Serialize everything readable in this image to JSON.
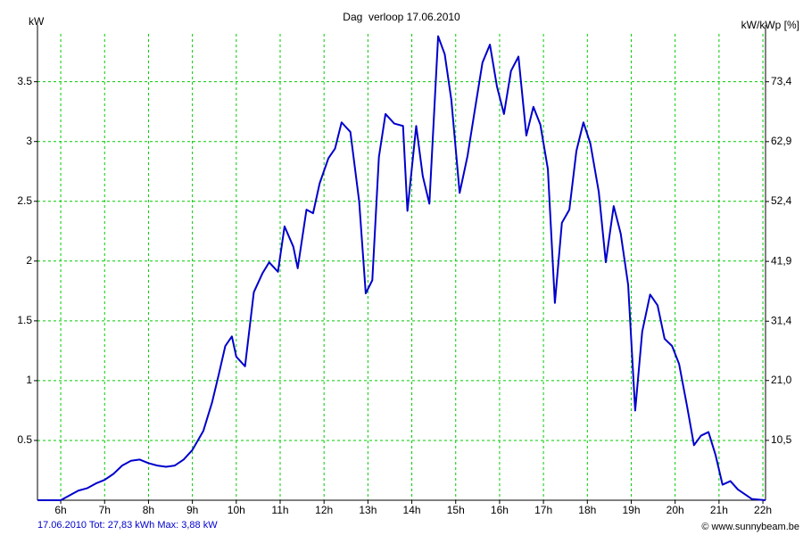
{
  "chart_data": {
    "type": "line",
    "title": "Dag  verloop 17.06.2010",
    "ylabel": "kW",
    "y2label": "kW/kWp [%]",
    "footer": [
      "17.06.2010 Tot: 27,83 kWh Max: 3,88 kW",
      "© www.sunnybeam.be"
    ],
    "footer_color": "#0000cc",
    "grid": true,
    "grid_color": "#00cc00",
    "xlim": [
      5.47,
      22.06
    ],
    "xticks": [
      {
        "value": 6,
        "label": "6h"
      },
      {
        "value": 7,
        "label": "7h"
      },
      {
        "value": 8,
        "label": "8h"
      },
      {
        "value": 9,
        "label": "9h"
      },
      {
        "value": 10,
        "label": "10h"
      },
      {
        "value": 11,
        "label": "11h"
      },
      {
        "value": 12,
        "label": "12h"
      },
      {
        "value": 13,
        "label": "13h"
      },
      {
        "value": 14,
        "label": "14h"
      },
      {
        "value": 15,
        "label": "15h"
      },
      {
        "value": 16,
        "label": "16h"
      },
      {
        "value": 17,
        "label": "17h"
      },
      {
        "value": 18,
        "label": "18h"
      },
      {
        "value": 19,
        "label": "19h"
      },
      {
        "value": 20,
        "label": "20h"
      },
      {
        "value": 21,
        "label": "21h"
      },
      {
        "value": 22,
        "label": "22h"
      }
    ],
    "ylim": [
      0,
      3.9
    ],
    "yticks": [
      0.5,
      1,
      1.5,
      2,
      2.5,
      3,
      3.5
    ],
    "y2lim": [
      0,
      81.8
    ],
    "y2ticks": [
      {
        "value": 10.5,
        "label": "10,5"
      },
      {
        "value": 21.0,
        "label": "21,0"
      },
      {
        "value": 31.4,
        "label": "31,4"
      },
      {
        "value": 41.9,
        "label": "41,9"
      },
      {
        "value": 52.4,
        "label": "52,4"
      },
      {
        "value": 62.9,
        "label": "62,9"
      },
      {
        "value": 73.4,
        "label": "73,4"
      }
    ],
    "series": [
      {
        "name": "kW",
        "color": "#0000cc",
        "x": [
          5.47,
          6.0,
          6.2,
          6.4,
          6.6,
          6.8,
          7.0,
          7.2,
          7.4,
          7.6,
          7.8,
          8.0,
          8.2,
          8.4,
          8.6,
          8.8,
          9.0,
          9.25,
          9.45,
          9.6,
          9.75,
          9.9,
          10.0,
          10.2,
          10.4,
          10.6,
          10.75,
          10.95,
          11.1,
          11.3,
          11.4,
          11.6,
          11.75,
          11.9,
          12.1,
          12.25,
          12.4,
          12.6,
          12.8,
          12.95,
          13.1,
          13.25,
          13.4,
          13.6,
          13.8,
          13.9,
          14.1,
          14.25,
          14.4,
          14.6,
          14.75,
          14.9,
          15.09,
          15.27,
          15.43,
          15.61,
          15.78,
          15.94,
          16.1,
          16.26,
          16.43,
          16.61,
          16.77,
          16.93,
          17.1,
          17.26,
          17.42,
          17.59,
          17.75,
          17.91,
          18.07,
          18.26,
          18.42,
          18.6,
          18.76,
          18.93,
          19.09,
          19.25,
          19.43,
          19.6,
          19.76,
          19.93,
          20.09,
          20.27,
          20.43,
          20.59,
          20.76,
          20.92,
          21.08,
          21.26,
          21.43,
          21.59,
          21.75,
          22.06
        ],
        "values": [
          0,
          0,
          0.04,
          0.08,
          0.1,
          0.14,
          0.17,
          0.22,
          0.29,
          0.33,
          0.34,
          0.31,
          0.29,
          0.28,
          0.29,
          0.34,
          0.42,
          0.58,
          0.82,
          1.05,
          1.29,
          1.37,
          1.2,
          1.12,
          1.74,
          1.9,
          1.99,
          1.91,
          2.29,
          2.12,
          1.94,
          2.43,
          2.4,
          2.65,
          2.86,
          2.94,
          3.16,
          3.08,
          2.5,
          1.73,
          1.84,
          2.87,
          3.23,
          3.15,
          3.13,
          2.42,
          3.13,
          2.71,
          2.48,
          3.88,
          3.73,
          3.35,
          2.57,
          2.88,
          3.25,
          3.66,
          3.81,
          3.46,
          3.23,
          3.59,
          3.71,
          3.05,
          3.29,
          3.14,
          2.77,
          1.65,
          2.32,
          2.43,
          2.92,
          3.16,
          2.98,
          2.58,
          1.99,
          2.46,
          2.23,
          1.8,
          0.75,
          1.41,
          1.72,
          1.63,
          1.35,
          1.29,
          1.14,
          0.79,
          0.46,
          0.54,
          0.57,
          0.38,
          0.13,
          0.16,
          0.09,
          0.05,
          0.01,
          0
        ]
      }
    ]
  }
}
